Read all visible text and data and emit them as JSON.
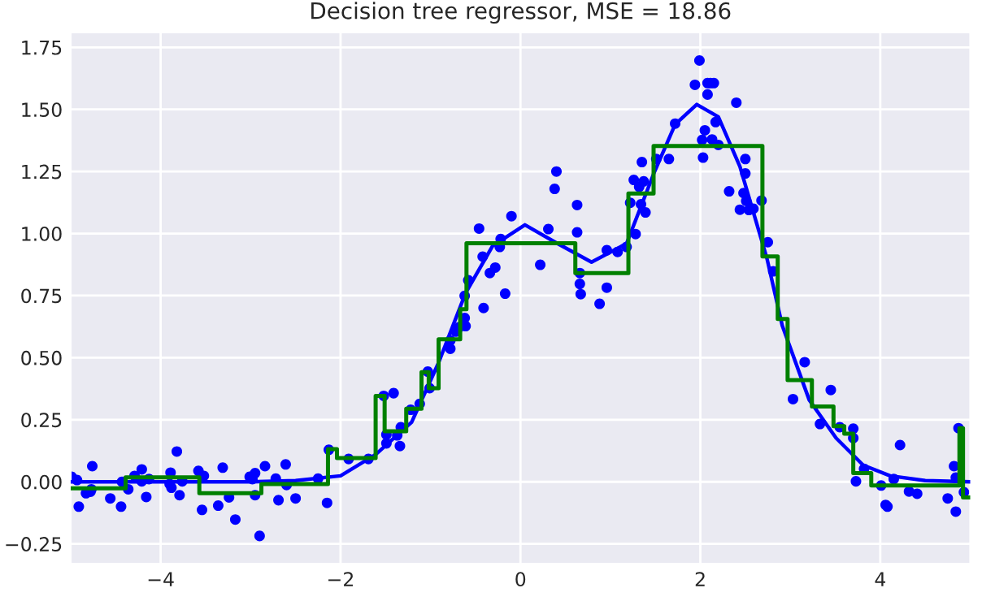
{
  "chart_data": {
    "type": "scatter",
    "title": "Decision tree regressor, MSE = 18.86",
    "xlim": [
      -5,
      5
    ],
    "ylim": [
      -0.33,
      1.81
    ],
    "xticks": [
      {
        "value": -4,
        "label": "−4"
      },
      {
        "value": -2,
        "label": "−2"
      },
      0,
      2,
      4
    ],
    "yticks": [
      {
        "value": -0.25,
        "label": "−0.25"
      },
      {
        "value": 0,
        "label": "0.00"
      },
      0.25,
      {
        "value": 0.5,
        "label": "0.50"
      },
      0.75,
      {
        "value": 1,
        "label": "1.00"
      },
      1.25,
      {
        "value": 1.5,
        "label": "1.50"
      },
      1.75
    ],
    "grid": true,
    "legend": false,
    "series": [
      {
        "color": "#0000ff",
        "marker": "circle",
        "x": [
          -4.99,
          -4.93,
          -4.91,
          -4.83,
          -4.78,
          -4.77,
          -4.76,
          -4.56,
          -4.44,
          -4.43,
          -4.36,
          -4.29,
          -4.21,
          -4.21,
          -4.16,
          -4.13,
          -3.89,
          -3.9,
          -3.88,
          -3.82,
          -3.79,
          -3.76,
          -3.58,
          -3.54,
          -3.52,
          -3.36,
          -3.31,
          -3.24,
          -3.17,
          -3.01,
          -2.98,
          -2.95,
          -2.95,
          -2.9,
          -2.84,
          -2.72,
          -2.69,
          -2.61,
          -2.6,
          -2.5,
          -2.25,
          -2.15,
          -2.13,
          -1.91,
          -1.69,
          -1.52,
          -1.41,
          -1.49,
          -1.49,
          -1.37,
          -1.34,
          -1.33,
          -1.22,
          -1.12,
          -1.03,
          -1.01,
          -0.78,
          -0.78,
          -0.72,
          -0.68,
          -0.62,
          -0.61,
          -0.62,
          -0.58,
          -0.46,
          -0.42,
          -0.41,
          -0.34,
          -0.28,
          -0.23,
          -0.22,
          -0.17,
          -0.1,
          0.22,
          0.31,
          0.38,
          0.4,
          0.63,
          0.63,
          0.66,
          0.66,
          0.67,
          0.88,
          0.96,
          0.96,
          1.08,
          1.18,
          1.22,
          1.26,
          1.28,
          1.32,
          1.35,
          1.34,
          1.37,
          1.39,
          1.51,
          1.65,
          1.72,
          1.94,
          1.99,
          2.05,
          2.08,
          2.11,
          2.15,
          2.08,
          2.13,
          2.03,
          2.02,
          2.17,
          2.2,
          2.32,
          2.4,
          2.44,
          2.48,
          2.5,
          2.5,
          2.51,
          2.54,
          2.59,
          2.68,
          2.75,
          2.81,
          3.03,
          3.16,
          3.33,
          3.45,
          3.55,
          3.7,
          3.7,
          3.73,
          3.82,
          4.01,
          4.06,
          4.08,
          4.15,
          4.22,
          4.32,
          4.41,
          4.75,
          4.82,
          4.84,
          4.84,
          4.87,
          4.93
        ],
        "values": [
          0.02,
          0.007,
          -0.1,
          -0.046,
          -0.04,
          -0.03,
          0.063,
          -0.067,
          -0.1,
          0.0,
          -0.03,
          0.024,
          0.05,
          0.002,
          -0.061,
          0.011,
          0.037,
          -0.009,
          -0.024,
          0.122,
          -0.054,
          0.002,
          0.044,
          -0.113,
          0.024,
          -0.096,
          0.057,
          -0.063,
          -0.152,
          0.02,
          0.011,
          0.035,
          -0.054,
          -0.218,
          0.063,
          0.013,
          -0.074,
          0.07,
          -0.013,
          -0.067,
          0.013,
          -0.085,
          0.129,
          0.092,
          0.092,
          0.346,
          0.357,
          0.19,
          0.155,
          0.187,
          0.144,
          0.22,
          0.29,
          0.314,
          0.444,
          0.377,
          0.536,
          0.569,
          0.605,
          0.623,
          0.66,
          0.627,
          0.749,
          0.812,
          1.02,
          0.907,
          0.7,
          0.841,
          0.863,
          0.946,
          0.978,
          0.758,
          1.07,
          0.874,
          1.018,
          1.18,
          1.25,
          1.115,
          1.005,
          0.841,
          0.797,
          0.756,
          0.717,
          0.782,
          0.933,
          0.926,
          0.946,
          1.124,
          1.216,
          0.998,
          1.188,
          1.288,
          1.118,
          1.21,
          1.085,
          1.3,
          1.3,
          1.443,
          1.599,
          1.697,
          1.416,
          1.606,
          1.606,
          1.606,
          1.56,
          1.379,
          1.306,
          1.377,
          1.449,
          1.357,
          1.17,
          1.527,
          1.096,
          1.163,
          1.3,
          1.242,
          1.131,
          1.095,
          1.1,
          1.133,
          0.965,
          0.848,
          0.333,
          0.482,
          0.233,
          0.37,
          0.22,
          0.214,
          0.176,
          0.002,
          0.052,
          -0.015,
          -0.093,
          -0.1,
          0.011,
          0.148,
          -0.039,
          -0.048,
          -0.067,
          0.063,
          -0.12,
          0.017,
          0.216,
          -0.042
        ]
      },
      {
        "type": "line",
        "color": "#0000ff",
        "x": [
          -5,
          -3,
          -2.5,
          -2,
          -1.61,
          -1.21,
          -0.91,
          -0.61,
          -0.31,
          0.05,
          0.41,
          0.79,
          1.18,
          1.48,
          1.72,
          1.96,
          2.2,
          2.44,
          2.74,
          2.91,
          3.21,
          3.51,
          3.81,
          4.11,
          4.5,
          5
        ],
        "values": [
          0.0,
          0.0,
          0.005,
          0.024,
          0.11,
          0.24,
          0.48,
          0.76,
          0.95,
          1.035,
          0.96,
          0.885,
          0.96,
          1.24,
          1.44,
          1.52,
          1.47,
          1.27,
          0.9,
          0.63,
          0.33,
          0.176,
          0.067,
          0.024,
          0.005,
          0.0
        ]
      },
      {
        "type": "step",
        "color": "#008000",
        "x": [
          -5,
          -4.39,
          -3.57,
          -2.88,
          -2.14,
          -2.04,
          -1.61,
          -1.51,
          -1.27,
          -1.1,
          -1.02,
          -0.91,
          -0.67,
          -0.6,
          0.61,
          1.2,
          1.48,
          2.69,
          2.86,
          2.97,
          3.24,
          3.48,
          3.6,
          3.7,
          3.9,
          4.88,
          4.92,
          5
        ],
        "values": [
          -0.026,
          0.018,
          -0.046,
          -0.009,
          0.132,
          0.096,
          0.346,
          0.204,
          0.294,
          0.442,
          0.377,
          0.574,
          0.695,
          0.961,
          0.841,
          1.161,
          1.353,
          0.908,
          0.656,
          0.41,
          0.303,
          0.224,
          0.194,
          0.035,
          -0.015,
          0.216,
          -0.063,
          -0.063
        ]
      }
    ]
  }
}
